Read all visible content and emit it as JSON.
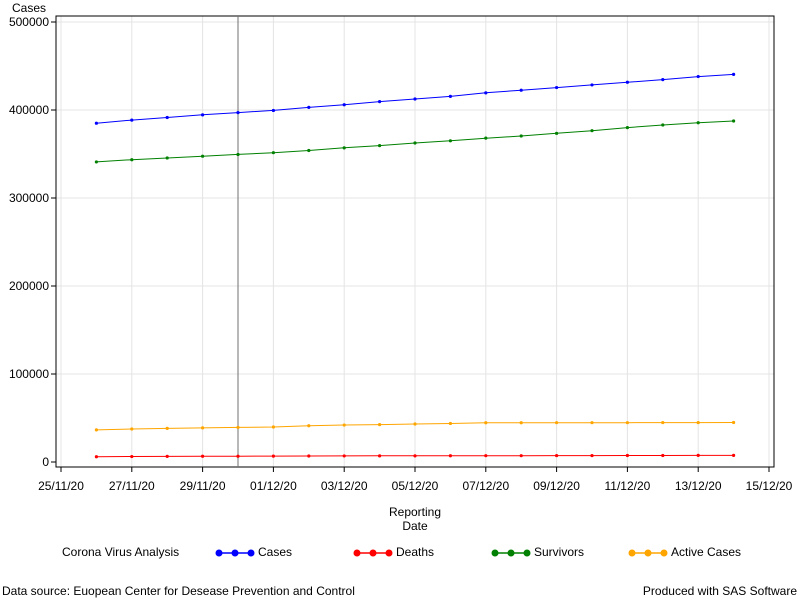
{
  "chart_data": {
    "type": "line",
    "ylabel": "Cases",
    "xlabel_lines": [
      "Reporting",
      "Date"
    ],
    "x_dates": [
      "26/11/20",
      "27/11/20",
      "28/11/20",
      "29/11/20",
      "30/11/20",
      "01/12/20",
      "02/12/20",
      "03/12/20",
      "04/12/20",
      "05/12/20",
      "06/12/20",
      "07/12/20",
      "08/12/20",
      "09/12/20",
      "10/12/20",
      "11/12/20",
      "12/12/20",
      "13/12/20",
      "14/12/20"
    ],
    "x_ticks": [
      "25/11/20",
      "27/11/20",
      "29/11/20",
      "01/12/20",
      "03/12/20",
      "05/12/20",
      "07/12/20",
      "09/12/20",
      "11/12/20",
      "13/12/20",
      "15/12/20"
    ],
    "y_ticks": [
      0,
      100000,
      200000,
      300000,
      400000,
      500000
    ],
    "ylim": [
      0,
      500000
    ],
    "xlim": [
      "25/11/20",
      "15/12/20"
    ],
    "grid": true,
    "reference_line_x": "30/11/20",
    "series": [
      {
        "name": "Cases",
        "color": "#0000ff",
        "values": [
          385000,
          388500,
          391500,
          394500,
          397000,
          399500,
          403000,
          406000,
          409500,
          412500,
          415500,
          419500,
          422500,
          425500,
          428500,
          431500,
          434500,
          438000,
          440500
        ]
      },
      {
        "name": "Deaths",
        "color": "#ff0000",
        "values": [
          6000,
          6200,
          6400,
          6500,
          6600,
          6700,
          6800,
          6900,
          7000,
          7000,
          7100,
          7200,
          7200,
          7300,
          7300,
          7400,
          7400,
          7500,
          7500
        ]
      },
      {
        "name": "Survivors",
        "color": "#008000",
        "values": [
          341000,
          343500,
          345500,
          347500,
          349500,
          351500,
          354000,
          357000,
          359500,
          362500,
          365000,
          368000,
          370500,
          373500,
          376500,
          380000,
          383000,
          385500,
          387500
        ]
      },
      {
        "name": "Active Cases",
        "color": "#ffa500",
        "values": [
          36500,
          37500,
          38200,
          38800,
          39300,
          39800,
          41200,
          42000,
          42500,
          43200,
          43800,
          44600,
          44600,
          44700,
          44700,
          44700,
          44800,
          44800,
          44900
        ]
      }
    ]
  },
  "legend": {
    "title": "Corona Virus Analysis",
    "items": [
      {
        "label": "Cases",
        "color": "#0000ff"
      },
      {
        "label": "Deaths",
        "color": "#ff0000"
      },
      {
        "label": "Survivors",
        "color": "#008000"
      },
      {
        "label": "Active Cases",
        "color": "#ffa500"
      }
    ]
  },
  "footer": {
    "source": "Data source: Euopean Center for Desease Prevention and Control",
    "produced": "Produced with SAS Software"
  }
}
